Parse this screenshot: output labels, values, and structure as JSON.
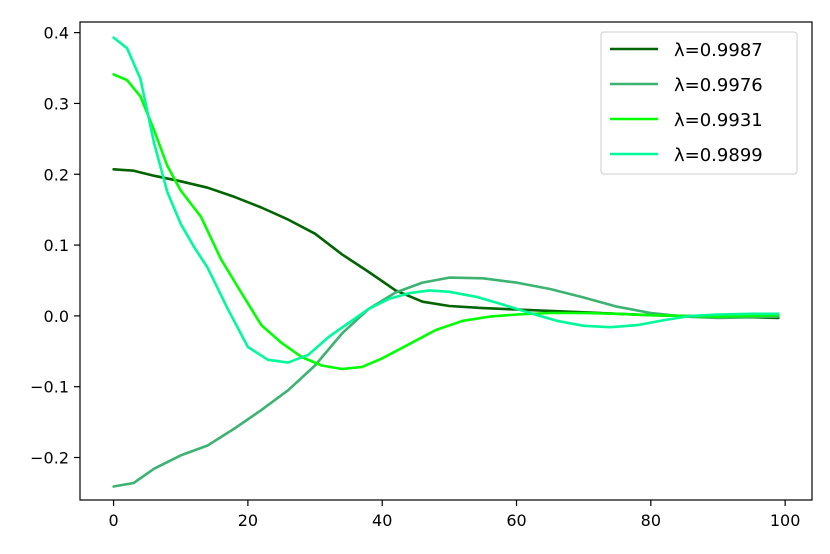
{
  "chart_data": {
    "type": "line",
    "title": "",
    "xlabel": "",
    "ylabel": "",
    "xlim": [
      -5,
      104
    ],
    "ylim": [
      -0.26,
      0.415
    ],
    "xticks": [
      0,
      20,
      40,
      60,
      80,
      100
    ],
    "xtick_labels": [
      "0",
      "20",
      "40",
      "60",
      "80",
      "100"
    ],
    "yticks": [
      -0.2,
      -0.1,
      0.0,
      0.1,
      0.2,
      0.3,
      0.4
    ],
    "ytick_labels": [
      "−0.2",
      "−0.1",
      "0.0",
      "0.1",
      "0.2",
      "0.3",
      "0.4"
    ],
    "grid": false,
    "legend_position": "top-right",
    "series": [
      {
        "name": "λ=0.9987",
        "color": "#006400",
        "x": [
          0,
          3,
          6,
          10,
          14,
          18,
          22,
          26,
          30,
          34,
          38,
          42,
          46,
          50,
          55,
          60,
          65,
          70,
          75,
          80,
          85,
          90,
          95,
          99
        ],
        "y": [
          0.207,
          0.205,
          0.198,
          0.19,
          0.181,
          0.168,
          0.153,
          0.136,
          0.116,
          0.087,
          0.062,
          0.036,
          0.02,
          0.014,
          0.011,
          0.009,
          0.007,
          0.005,
          0.003,
          0.001,
          0.0,
          -0.001,
          -0.002,
          -0.003
        ]
      },
      {
        "name": "λ=0.9976",
        "color": "#3CB371",
        "x": [
          0,
          3,
          6,
          10,
          14,
          18,
          22,
          26,
          30,
          34,
          38,
          42,
          46,
          50,
          55,
          60,
          65,
          70,
          75,
          80,
          85,
          90,
          95,
          99
        ],
        "y": [
          -0.241,
          -0.236,
          -0.216,
          -0.197,
          -0.183,
          -0.159,
          -0.133,
          -0.105,
          -0.07,
          -0.025,
          0.01,
          0.033,
          0.047,
          0.054,
          0.053,
          0.047,
          0.038,
          0.026,
          0.013,
          0.004,
          -0.001,
          -0.003,
          -0.002,
          -0.001
        ]
      },
      {
        "name": "λ=0.9931",
        "color": "#00FF00",
        "x": [
          0,
          2,
          4,
          6,
          8,
          10,
          13,
          16,
          19,
          22,
          25,
          28,
          31,
          34,
          37,
          40,
          44,
          48,
          52,
          56,
          60,
          65,
          70,
          75,
          80,
          85,
          90,
          95,
          99
        ],
        "y": [
          0.341,
          0.333,
          0.31,
          0.263,
          0.212,
          0.177,
          0.14,
          0.08,
          0.033,
          -0.013,
          -0.038,
          -0.058,
          -0.07,
          -0.075,
          -0.072,
          -0.06,
          -0.04,
          -0.02,
          -0.007,
          -0.001,
          0.002,
          0.004,
          0.004,
          0.003,
          0.001,
          0.0,
          -0.001,
          0.0,
          0.001
        ]
      },
      {
        "name": "λ=0.9899",
        "color": "#00FA9A",
        "x": [
          0,
          2,
          4,
          6,
          8,
          10,
          12,
          14,
          17,
          20,
          23,
          26,
          29,
          32,
          35,
          38,
          41,
          44,
          47,
          50,
          54,
          58,
          62,
          66,
          70,
          74,
          78,
          82,
          86,
          90,
          95,
          99
        ],
        "y": [
          0.393,
          0.378,
          0.335,
          0.245,
          0.175,
          0.13,
          0.097,
          0.068,
          0.01,
          -0.044,
          -0.062,
          -0.066,
          -0.055,
          -0.03,
          -0.01,
          0.01,
          0.024,
          0.032,
          0.036,
          0.034,
          0.027,
          0.016,
          0.004,
          -0.007,
          -0.014,
          -0.016,
          -0.013,
          -0.006,
          0.0,
          0.002,
          0.003,
          0.003
        ]
      }
    ]
  }
}
